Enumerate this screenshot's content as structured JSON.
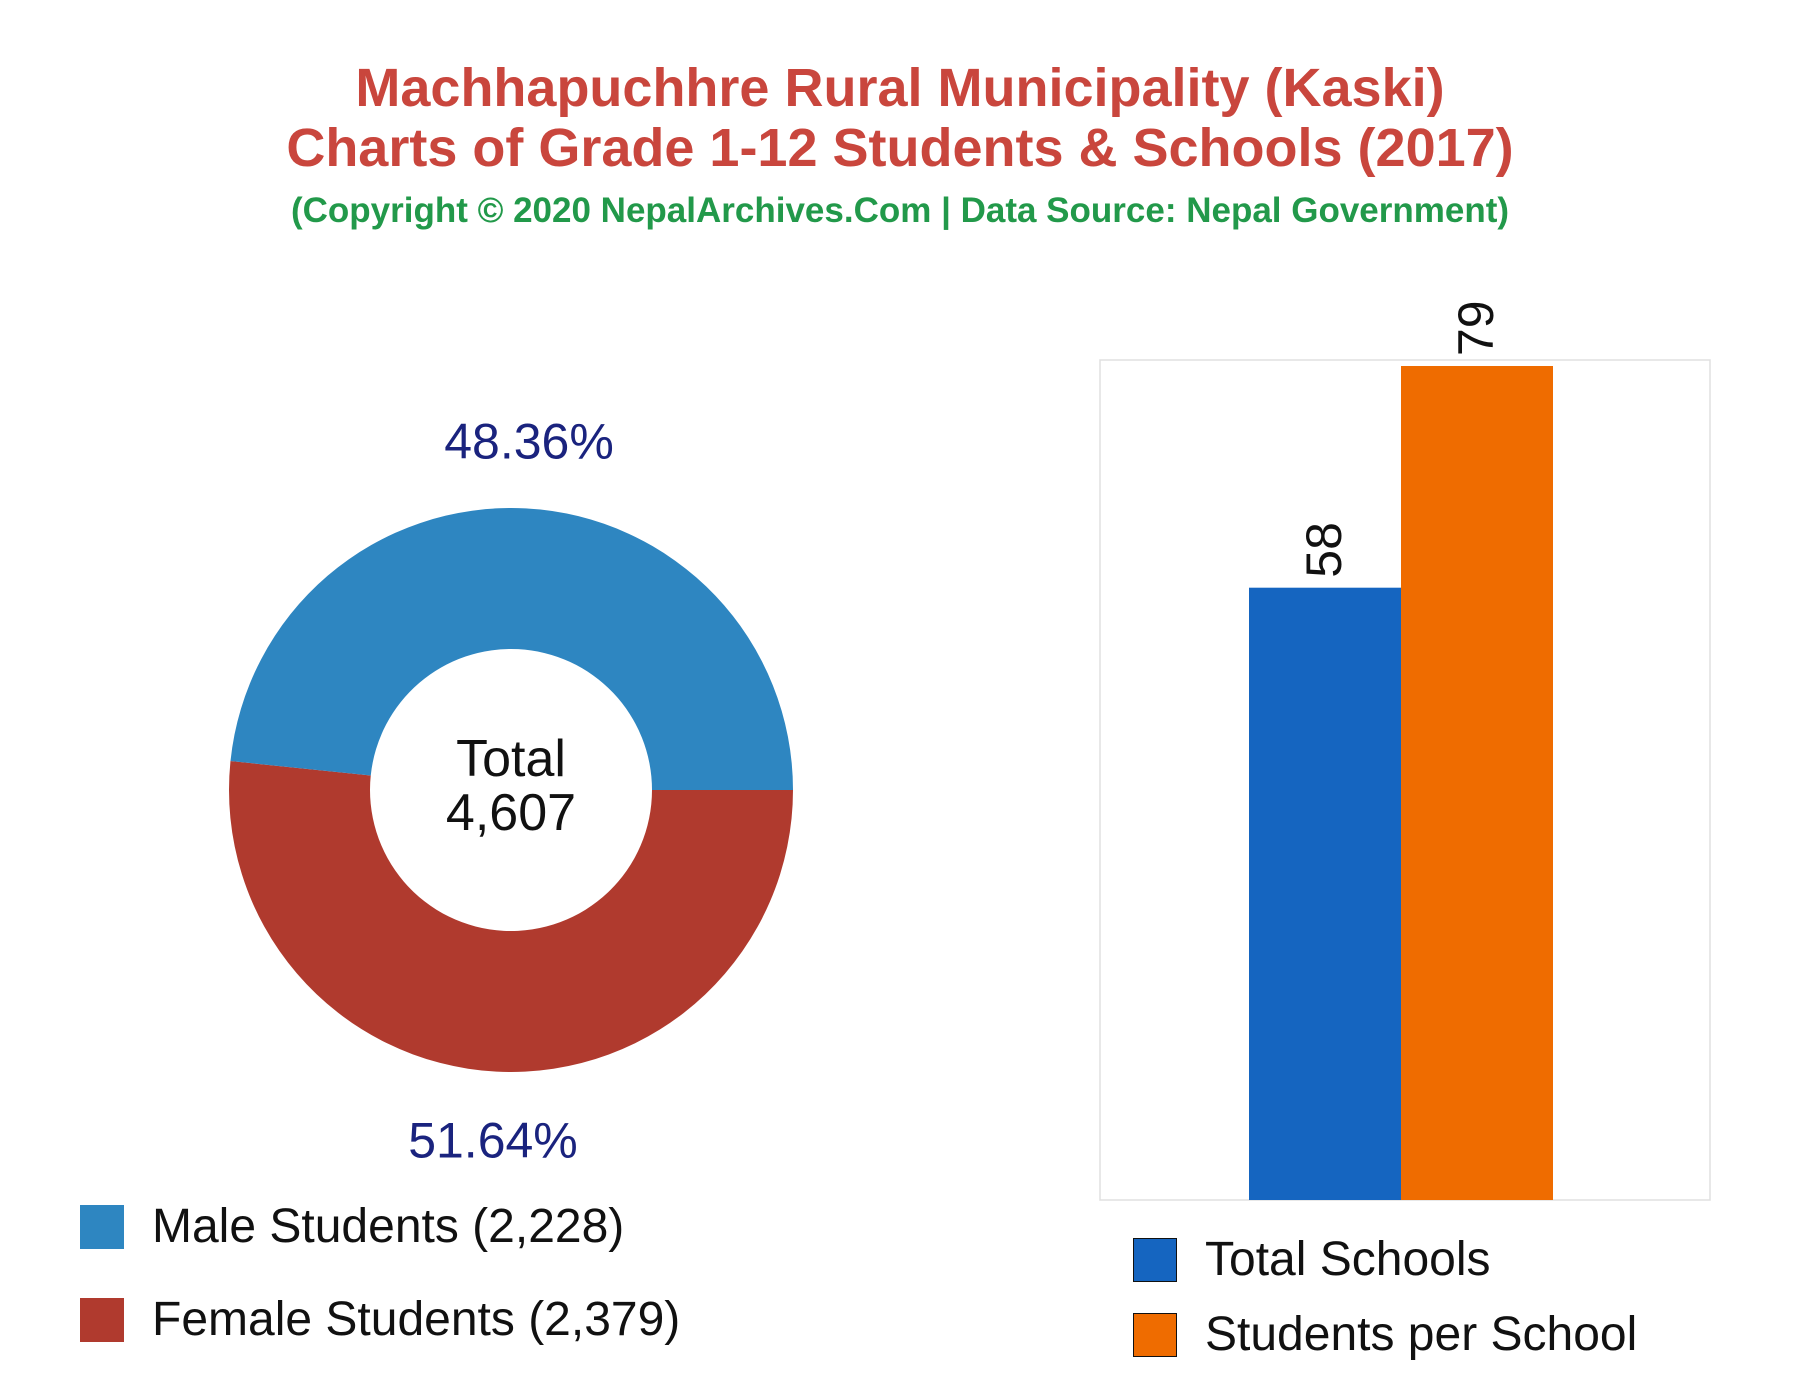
{
  "header": {
    "title_line1": "Machhapuchhre Rural Municipality (Kaski)",
    "title_line2": "Charts of Grade 1-12 Students & Schools (2017)",
    "subtitle": "(Copyright © 2020 NepalArchives.Com | Data Source: Nepal Government)"
  },
  "colors": {
    "title": "#c9463d",
    "subtitle": "#22994a",
    "male": "#2e86c1",
    "female": "#b03a2e",
    "schools": "#1565c0",
    "students_per_school": "#ef6c00",
    "percent_label": "#1a237e"
  },
  "chart_data": [
    {
      "type": "pie",
      "variant": "donut",
      "center_label": "Total",
      "center_value": "4,607",
      "slices": [
        {
          "name": "Male Students",
          "value": 2228,
          "percent": 48.36,
          "percent_label": "48.36%",
          "legend": "Male Students (2,228)",
          "color": "#2e86c1"
        },
        {
          "name": "Female Students",
          "value": 2379,
          "percent": 51.64,
          "percent_label": "51.64%",
          "legend": "Female Students (2,379)",
          "color": "#b03a2e"
        }
      ],
      "legend_placement": "bottom-left"
    },
    {
      "type": "bar",
      "categories": [
        ""
      ],
      "series": [
        {
          "name": "Total Schools",
          "values": [
            58
          ],
          "label": "58",
          "color": "#1565c0"
        },
        {
          "name": "Students per School",
          "values": [
            79
          ],
          "label": "79",
          "color": "#ef6c00"
        }
      ],
      "ylim": [
        0,
        79
      ],
      "grid": false,
      "legend_placement": "bottom"
    }
  ]
}
